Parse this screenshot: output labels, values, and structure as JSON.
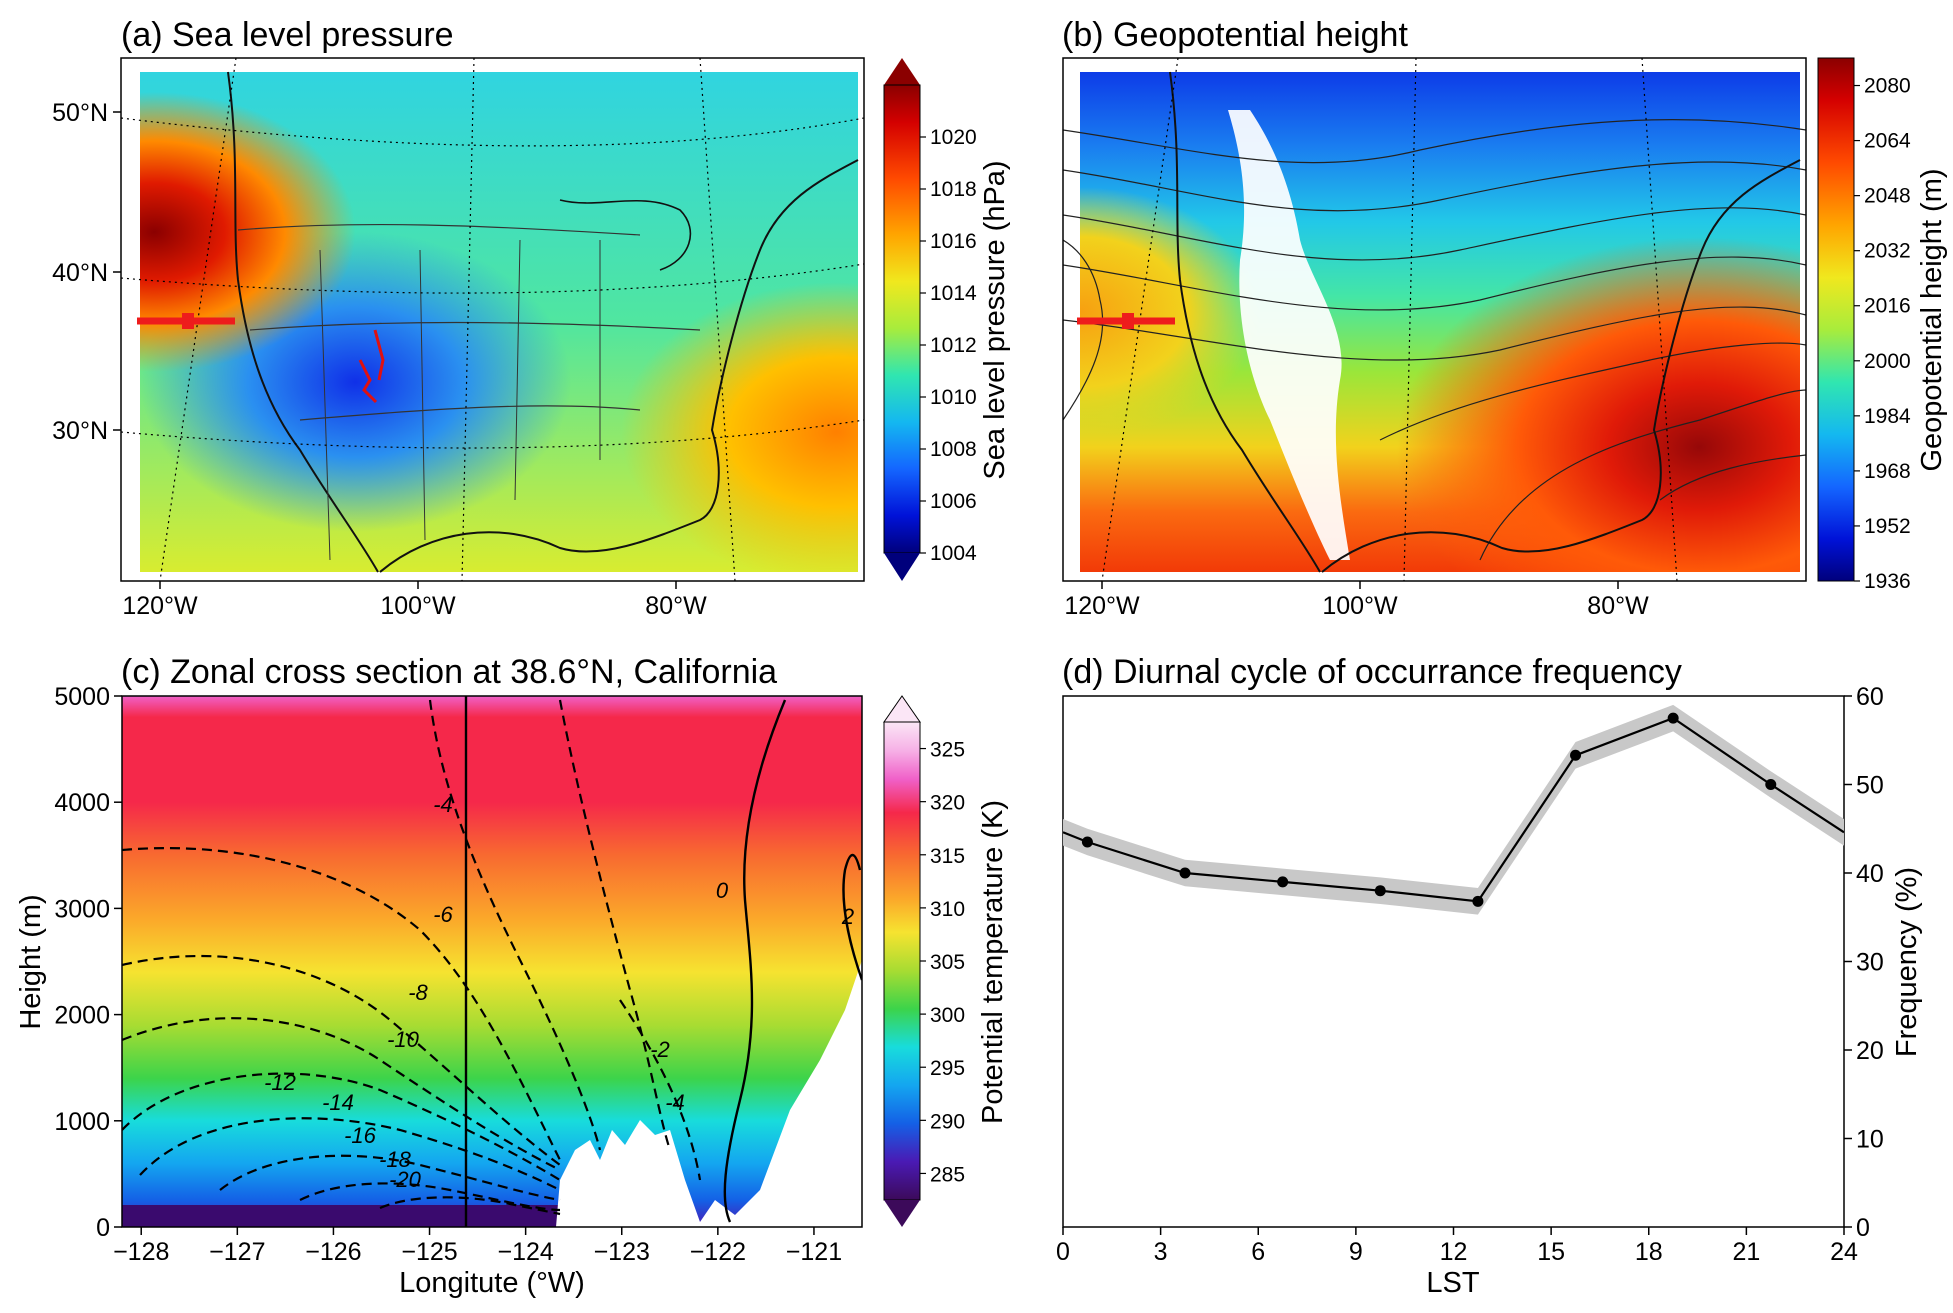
{
  "figure": {
    "panels": [
      {
        "id": "a",
        "title": "(a) Sea level pressure"
      },
      {
        "id": "b",
        "title": "(b) Geopotential height"
      },
      {
        "id": "c",
        "title": "(c) Zonal cross section at 38.6°N, California"
      },
      {
        "id": "d",
        "title": "(d) Diurnal cycle of occurrance frequency"
      }
    ]
  },
  "chart_data": [
    {
      "panel": "a",
      "type": "heatmap",
      "title": "(a) Sea level pressure",
      "xticklabels": [
        "120°W",
        "100°W",
        "80°W"
      ],
      "yticklabels": [
        "50°N",
        "40°N",
        "30°N"
      ],
      "colorbar": {
        "label": "Sea level pressure (hPa)",
        "range": [
          1004,
          1022
        ],
        "ticks": [
          1004,
          1006,
          1008,
          1010,
          1012,
          1014,
          1016,
          1018,
          1020
        ],
        "colormap": "jet"
      },
      "features": [
        "high pressure off Pacific Northwest coast",
        "high pressure off southeast Atlantic coast",
        "low pressure over southwest US"
      ],
      "marker": "red line segment at 38.6°N, California"
    },
    {
      "panel": "b",
      "type": "heatmap",
      "title": "(b) Geopotential height",
      "xticklabels": [
        "120°W",
        "100°W",
        "80°W"
      ],
      "colorbar": {
        "label": "Geopotential height (m)",
        "range": [
          1936,
          2088
        ],
        "ticks": [
          1936,
          1952,
          1968,
          1984,
          2000,
          2016,
          2032,
          2048,
          2064,
          2080
        ],
        "colormap": "jet"
      },
      "features": [
        "low heights over Canada",
        "high heights over southeastern US",
        "masked terrain over Rockies (white)"
      ],
      "marker": "red line segment at 38.6°N, California"
    },
    {
      "panel": "c",
      "type": "heatmap",
      "title": "(c) Zonal cross section at 38.6°N, California",
      "xlabel": "Longitute (°W)",
      "ylabel": "Height (m)",
      "xlim": [
        -128.2,
        -120.5
      ],
      "ylim": [
        0,
        5000
      ],
      "xticks": [
        -128,
        -127,
        -126,
        -125,
        -124,
        -123,
        -122,
        -121
      ],
      "yticks": [
        0,
        1000,
        2000,
        3000,
        4000,
        5000
      ],
      "colorbar": {
        "label": "Potential temperature (K)",
        "range": [
          282.5,
          327.5
        ],
        "ticks": [
          285,
          290,
          295,
          300,
          305,
          310,
          315,
          320,
          325
        ]
      },
      "contour_labels": [
        "-4",
        "-6",
        "-8",
        "-10",
        "-12",
        "-14",
        "-16",
        "-18",
        "-20",
        "-2",
        "-4",
        "0",
        "2"
      ],
      "vertical_line_x": -124.6
    },
    {
      "panel": "d",
      "type": "line",
      "title": "(d) Diurnal cycle of occurrance frequency",
      "xlabel": "LST",
      "ylabel": "Frequency (%)",
      "xlim": [
        0,
        24
      ],
      "ylim": [
        0,
        60
      ],
      "xticks": [
        0,
        3,
        6,
        9,
        12,
        15,
        18,
        21,
        24
      ],
      "yticks": [
        0,
        10,
        20,
        30,
        40,
        50,
        60
      ],
      "yaxis_side": "right",
      "series": [
        {
          "x": [
            0.75,
            3.75,
            6.75,
            9.75,
            12.75,
            15.75,
            18.75,
            21.75
          ],
          "values": [
            43.5,
            40.0,
            39.0,
            38.0,
            36.8,
            53.3,
            57.5,
            50.0
          ],
          "band_half_width": 1.5
        }
      ],
      "wrap_values": {
        "x0": 0,
        "y0": 44.6,
        "x24": 24,
        "y24": 44.6
      }
    }
  ]
}
